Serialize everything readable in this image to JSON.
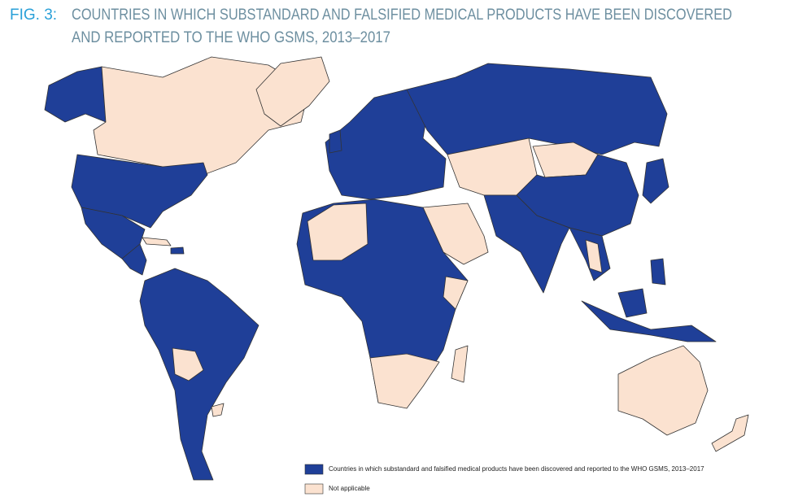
{
  "figure": {
    "label": "FIG. 3:",
    "title_lines": [
      "COUNTRIES IN WHICH SUBSTANDARD AND FALSIFIED MEDICAL PRODUCTS HAVE BEEN DISCOVERED",
      "AND REPORTED TO THE WHO GSMS, 2013–2017"
    ]
  },
  "legend": [
    {
      "label": "Countries in which substandard and falsified medical products have been discovered and reported to the WHO GSMS, 2013–2017",
      "color": "#1f3f98"
    },
    {
      "label": "Not applicable",
      "color": "#fbe2d0"
    }
  ]
}
